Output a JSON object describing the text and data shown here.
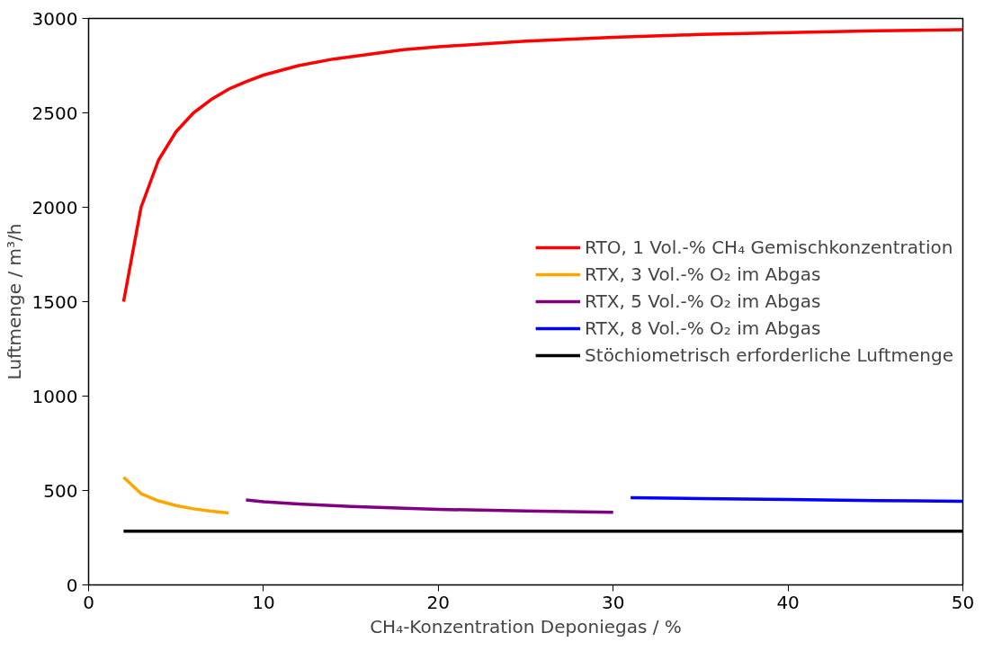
{
  "chart_data": {
    "type": "line",
    "xlabel": "CH₄-Konzentration Deponiegas / %",
    "ylabel": "Luftmenge / m³/h",
    "xlim": [
      0,
      50
    ],
    "ylim": [
      0,
      3000
    ],
    "xticks": [
      0,
      10,
      20,
      30,
      40,
      50
    ],
    "yticks": [
      0,
      500,
      1000,
      1500,
      2000,
      2500,
      3000
    ],
    "grid": false,
    "legend": "right",
    "line_style": "solid",
    "marker": "none",
    "series": [
      {
        "name": "RTO, 1 Vol.-% CH₄ Gemischkonzentration",
        "color": "#ff0000",
        "x": [
          2,
          3,
          4,
          5,
          6,
          7,
          8,
          9,
          10,
          12,
          14,
          16,
          18,
          20,
          25,
          30,
          35,
          40,
          45,
          50
        ],
        "values": [
          1500,
          2000,
          2250,
          2400,
          2500,
          2570,
          2625,
          2665,
          2700,
          2750,
          2785,
          2810,
          2835,
          2850,
          2880,
          2900,
          2915,
          2925,
          2935,
          2940
        ]
      },
      {
        "name": "RTX, 3 Vol.-% O₂ im Abgas",
        "color": "#ffa500",
        "x": [
          2,
          3,
          4,
          5,
          6,
          7,
          8
        ],
        "values": [
          570,
          483,
          445,
          420,
          403,
          390,
          381
        ]
      },
      {
        "name": "RTX, 5 Vol.-% O₂ im Abgas",
        "color": "#800080",
        "x": [
          9,
          10,
          12,
          15,
          20,
          25,
          30
        ],
        "values": [
          450,
          440,
          428,
          415,
          400,
          392,
          384
        ]
      },
      {
        "name": "RTX, 8 Vol.-% O₂ im Abgas",
        "color": "#0000ff",
        "x": [
          31,
          35,
          40,
          45,
          50
        ],
        "values": [
          462,
          457,
          452,
          447,
          443
        ]
      },
      {
        "name": "Stöchiometrisch erforderliche Luftmenge",
        "color": "#000000",
        "x": [
          2,
          50
        ],
        "values": [
          285,
          285
        ]
      }
    ]
  }
}
